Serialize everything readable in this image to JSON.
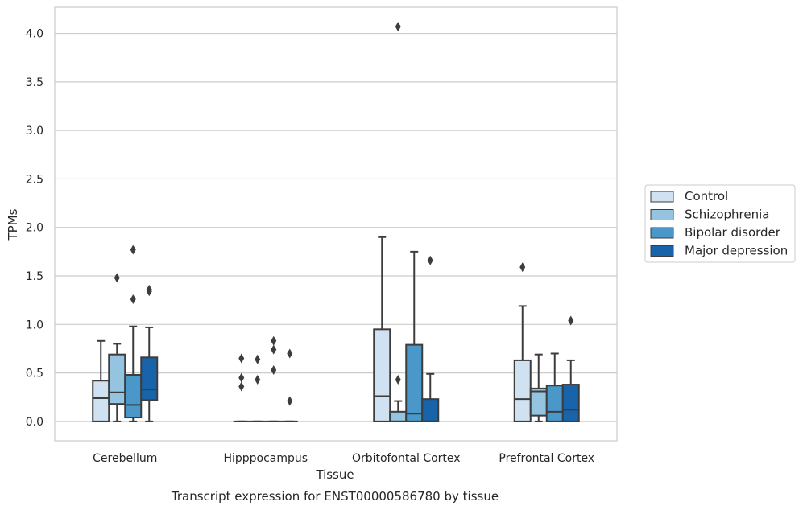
{
  "chart_data": {
    "type": "box",
    "title": "",
    "caption": "Transcript expression for ENST00000586780 by tissue",
    "xlabel": "Tissue",
    "ylabel": "TPMs",
    "ylim": [
      -0.2,
      4.27
    ],
    "yticks": [
      0.0,
      0.5,
      1.0,
      1.5,
      2.0,
      2.5,
      3.0,
      3.5,
      4.0
    ],
    "ytick_labels": [
      "0.0",
      "0.5",
      "1.0",
      "1.5",
      "2.0",
      "2.5",
      "3.0",
      "3.5",
      "4.0"
    ],
    "grid": "horizontal",
    "legend_position": "right",
    "categories": [
      "Cerebellum",
      "Hipppocampus",
      "Orbitofontal Cortex",
      "Prefrontal Cortex"
    ],
    "series": [
      {
        "name": "Control",
        "color": "#d0e1f2",
        "boxes": [
          {
            "whislo": 0.0,
            "q1": 0.0,
            "med": 0.24,
            "q3": 0.42,
            "whishi": 0.83,
            "fliers": []
          },
          {
            "whislo": 0.0,
            "q1": 0.0,
            "med": 0.0,
            "q3": 0.0,
            "whishi": 0.0,
            "fliers": [
              0.36,
              0.45,
              0.65
            ]
          },
          {
            "whislo": 0.0,
            "q1": 0.0,
            "med": 0.26,
            "q3": 0.95,
            "whishi": 1.9,
            "fliers": []
          },
          {
            "whislo": 0.0,
            "q1": 0.0,
            "med": 0.23,
            "q3": 0.63,
            "whishi": 1.19,
            "fliers": [
              1.59
            ]
          }
        ]
      },
      {
        "name": "Schizophrenia",
        "color": "#94c4df",
        "boxes": [
          {
            "whislo": 0.0,
            "q1": 0.18,
            "med": 0.3,
            "q3": 0.69,
            "whishi": 0.8,
            "fliers": [
              1.48
            ]
          },
          {
            "whislo": 0.0,
            "q1": 0.0,
            "med": 0.0,
            "q3": 0.0,
            "whishi": 0.0,
            "fliers": [
              0.43,
              0.64
            ]
          },
          {
            "whislo": 0.0,
            "q1": 0.0,
            "med": 0.0,
            "q3": 0.1,
            "whishi": 0.21,
            "fliers": [
              0.43,
              4.07
            ]
          },
          {
            "whislo": 0.0,
            "q1": 0.06,
            "med": 0.31,
            "q3": 0.34,
            "whishi": 0.69,
            "fliers": []
          }
        ]
      },
      {
        "name": "Bipolar disorder",
        "color": "#4a98c9",
        "boxes": [
          {
            "whislo": 0.0,
            "q1": 0.04,
            "med": 0.17,
            "q3": 0.48,
            "whishi": 0.98,
            "fliers": [
              1.26,
              1.77
            ]
          },
          {
            "whislo": 0.0,
            "q1": 0.0,
            "med": 0.0,
            "q3": 0.0,
            "whishi": 0.0,
            "fliers": [
              0.53,
              0.74,
              0.83
            ]
          },
          {
            "whislo": 0.0,
            "q1": 0.0,
            "med": 0.08,
            "q3": 0.79,
            "whishi": 1.75,
            "fliers": []
          },
          {
            "whislo": 0.0,
            "q1": 0.0,
            "med": 0.1,
            "q3": 0.37,
            "whishi": 0.7,
            "fliers": []
          }
        ]
      },
      {
        "name": "Major depression",
        "color": "#1764ab",
        "boxes": [
          {
            "whislo": 0.0,
            "q1": 0.22,
            "med": 0.33,
            "q3": 0.66,
            "whishi": 0.97,
            "fliers": [
              1.34,
              1.36
            ]
          },
          {
            "whislo": 0.0,
            "q1": 0.0,
            "med": 0.0,
            "q3": 0.0,
            "whishi": 0.0,
            "fliers": [
              0.21,
              0.7
            ]
          },
          {
            "whislo": 0.0,
            "q1": 0.0,
            "med": 0.0,
            "q3": 0.23,
            "whishi": 0.49,
            "fliers": [
              1.66
            ]
          },
          {
            "whislo": 0.0,
            "q1": 0.0,
            "med": 0.12,
            "q3": 0.38,
            "whishi": 0.63,
            "fliers": [
              1.04
            ]
          }
        ]
      }
    ]
  }
}
